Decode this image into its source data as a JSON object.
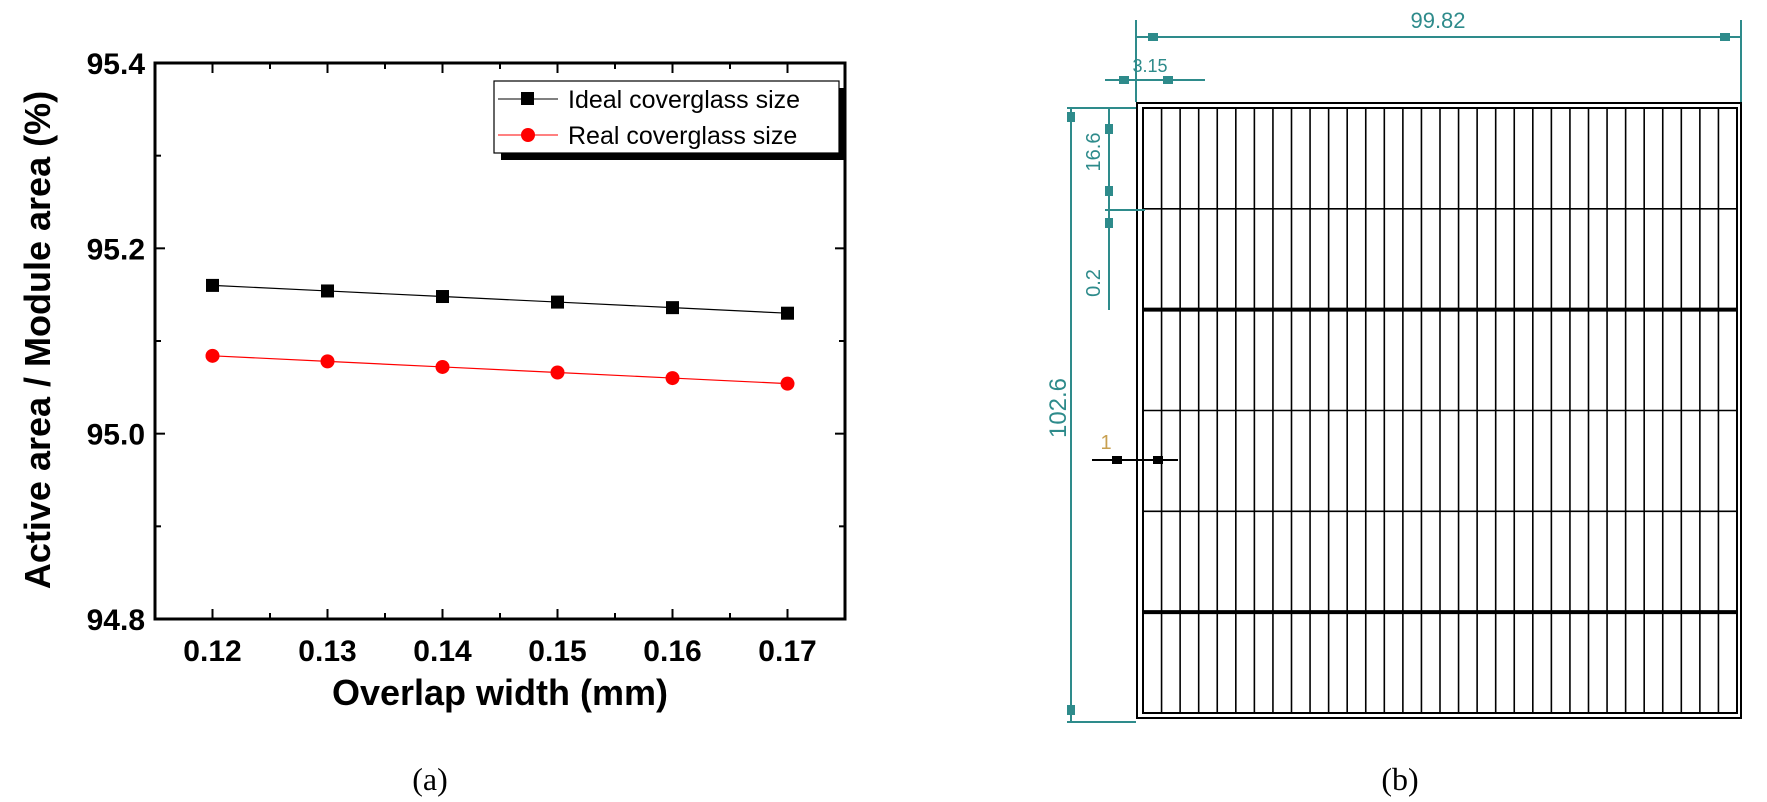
{
  "chart_data": {
    "type": "line",
    "x": [
      0.12,
      0.13,
      0.14,
      0.15,
      0.16,
      0.17
    ],
    "series": [
      {
        "name": "Ideal coverglass size",
        "values": [
          95.16,
          95.154,
          95.148,
          95.142,
          95.136,
          95.13
        ],
        "color": "#000000",
        "marker": "square"
      },
      {
        "name": "Real coverglass size",
        "values": [
          95.084,
          95.078,
          95.072,
          95.066,
          95.06,
          95.054
        ],
        "color": "#ff0000",
        "marker": "circle"
      }
    ],
    "xlim": [
      0.115,
      0.175
    ],
    "ylim": [
      94.8,
      95.4
    ],
    "xticks": [
      "0.12",
      "0.13",
      "0.14",
      "0.15",
      "0.16",
      "0.17"
    ],
    "yticks": [
      "94.8",
      "95.0",
      "95.2",
      "95.4"
    ],
    "xlabel": "Overlap width  (mm)",
    "ylabel": "Active area / Module area  (%)",
    "legend_position": "top-right",
    "grid": false
  },
  "captions": {
    "a": "(a)",
    "b": "(b)"
  },
  "diagram": {
    "dimension_color": "#2e8b8b",
    "dim_width": "99.82",
    "dim_margin": "3.15",
    "dim_cell_height": "16.6",
    "dim_gap": "0.2",
    "dim_height": "102.6",
    "dim_overlap": "1",
    "columns": 32,
    "rows": 6
  }
}
